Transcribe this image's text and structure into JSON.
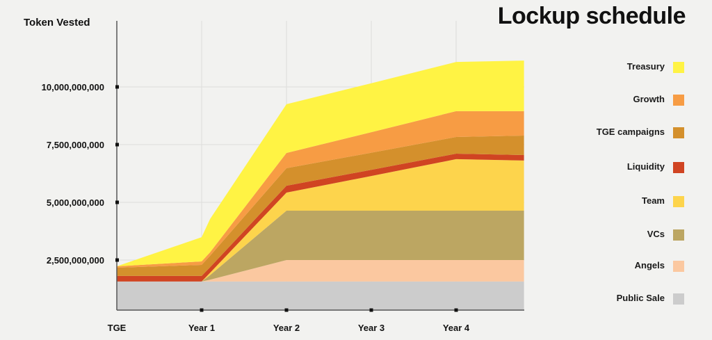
{
  "chart_data": {
    "type": "area",
    "title": "Lockup schedule",
    "ylabel": "Token Vested",
    "xlabel": "",
    "stacked": true,
    "x": [
      0,
      1,
      1.1,
      2,
      3,
      4,
      4.8
    ],
    "x_tick_values": [
      0,
      1,
      2,
      3,
      4
    ],
    "x_tick_labels": [
      "TGE",
      "Year 1",
      "Year 2",
      "Year 3",
      "Year 4"
    ],
    "y_tick_values": [
      2500000000,
      5000000000,
      7500000000,
      10000000000
    ],
    "y_tick_labels": [
      "2,500,000,000",
      "5,000,000,000",
      "7,500,000,000",
      "10,000,000,000"
    ],
    "ylim": [
      0,
      12000000000
    ],
    "grid": true,
    "legend_position": "right",
    "series": [
      {
        "name": "Public Sale",
        "color": "#cccccc",
        "values": [
          1570000000.0,
          1570000000.0,
          1570000000.0,
          1570000000.0,
          1570000000.0,
          1570000000.0,
          1570000000.0
        ]
      },
      {
        "name": "Angels",
        "color": "#fbc8a0",
        "values": [
          0,
          0,
          80000000.0,
          930000000.0,
          930000000.0,
          930000000.0,
          930000000.0
        ]
      },
      {
        "name": "VCs",
        "color": "#bca662",
        "values": [
          0,
          0,
          200000000.0,
          2140000000.0,
          2140000000.0,
          2140000000.0,
          2140000000.0
        ]
      },
      {
        "name": "Team",
        "color": "#fdd44c",
        "values": [
          0,
          0,
          100000000.0,
          780000000.0,
          1500000000.0,
          2230000000.0,
          2170000000.0
        ]
      },
      {
        "name": "Liquidity",
        "color": "#d04422",
        "values": [
          240000000.0,
          240000000.0,
          240000000.0,
          300000000.0,
          270000000.0,
          240000000.0,
          240000000.0
        ]
      },
      {
        "name": "TGE campaigns",
        "color": "#d4902c",
        "values": [
          360000000.0,
          480000000.0,
          500000000.0,
          760000000.0,
          740000000.0,
          720000000.0,
          840000000.0
        ]
      },
      {
        "name": "Growth",
        "color": "#f79c44",
        "values": [
          60000000.0,
          150000000.0,
          150000000.0,
          660000000.0,
          890000000.0,
          1120000000.0,
          1060000000.0
        ]
      },
      {
        "name": "Treasury",
        "color": "#fff344",
        "values": [
          0,
          1050000000.0,
          1440000000.0,
          2110000000.0,
          2120000000.0,
          2130000000.0,
          2190000000.0
        ]
      }
    ],
    "legend_order": [
      "Treasury",
      "Growth",
      "TGE campaigns",
      "Liquidity",
      "Team",
      "VCs",
      "Angels",
      "Public Sale"
    ]
  }
}
